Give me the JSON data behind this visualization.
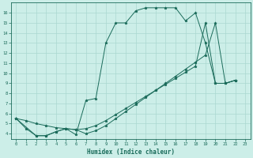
{
  "xlabel": "Humidex (Indice chaleur)",
  "bg_color": "#cceee8",
  "line_color": "#1a6b5a",
  "grid_color": "#aad8d0",
  "xlim": [
    -0.5,
    23.5
  ],
  "ylim": [
    3.5,
    17.0
  ],
  "xticks": [
    0,
    1,
    2,
    3,
    4,
    5,
    6,
    7,
    8,
    9,
    10,
    11,
    12,
    13,
    14,
    15,
    16,
    17,
    18,
    19,
    20,
    21,
    22,
    23
  ],
  "yticks": [
    4,
    5,
    6,
    7,
    8,
    9,
    10,
    11,
    12,
    13,
    14,
    15,
    16
  ],
  "line1_x": [
    0,
    1,
    2,
    3,
    4,
    5,
    6,
    7,
    8,
    9,
    10,
    11,
    12,
    13,
    14,
    15,
    16,
    17,
    18,
    19,
    20,
    21,
    22
  ],
  "line1_y": [
    5.5,
    4.5,
    3.8,
    3.8,
    4.2,
    4.5,
    3.9,
    7.3,
    7.5,
    13.0,
    15.0,
    15.0,
    16.2,
    16.5,
    16.5,
    16.5,
    16.5,
    15.2,
    16.0,
    13.0,
    9.0,
    9.0,
    9.3
  ],
  "line2_x": [
    0,
    1,
    2,
    3,
    4,
    5,
    6,
    7,
    8,
    9,
    10,
    11,
    12,
    13,
    14,
    15,
    16,
    17,
    18,
    19,
    20,
    21,
    22
  ],
  "line2_y": [
    5.5,
    5.3,
    5.0,
    4.8,
    4.6,
    4.5,
    4.4,
    4.5,
    4.8,
    5.3,
    5.9,
    6.5,
    7.1,
    7.7,
    8.3,
    8.9,
    9.5,
    10.1,
    10.7,
    15.0,
    9.0,
    9.0,
    9.3
  ],
  "line3_x": [
    0,
    2,
    3,
    4,
    5,
    6,
    7,
    8,
    9,
    10,
    11,
    12,
    13,
    14,
    15,
    16,
    17,
    18,
    19,
    20,
    21,
    22
  ],
  "line3_y": [
    5.5,
    3.8,
    3.8,
    4.2,
    4.5,
    4.4,
    4.0,
    4.3,
    4.8,
    5.5,
    6.2,
    6.9,
    7.6,
    8.3,
    9.0,
    9.7,
    10.4,
    11.1,
    11.8,
    15.0,
    9.0,
    9.3
  ]
}
